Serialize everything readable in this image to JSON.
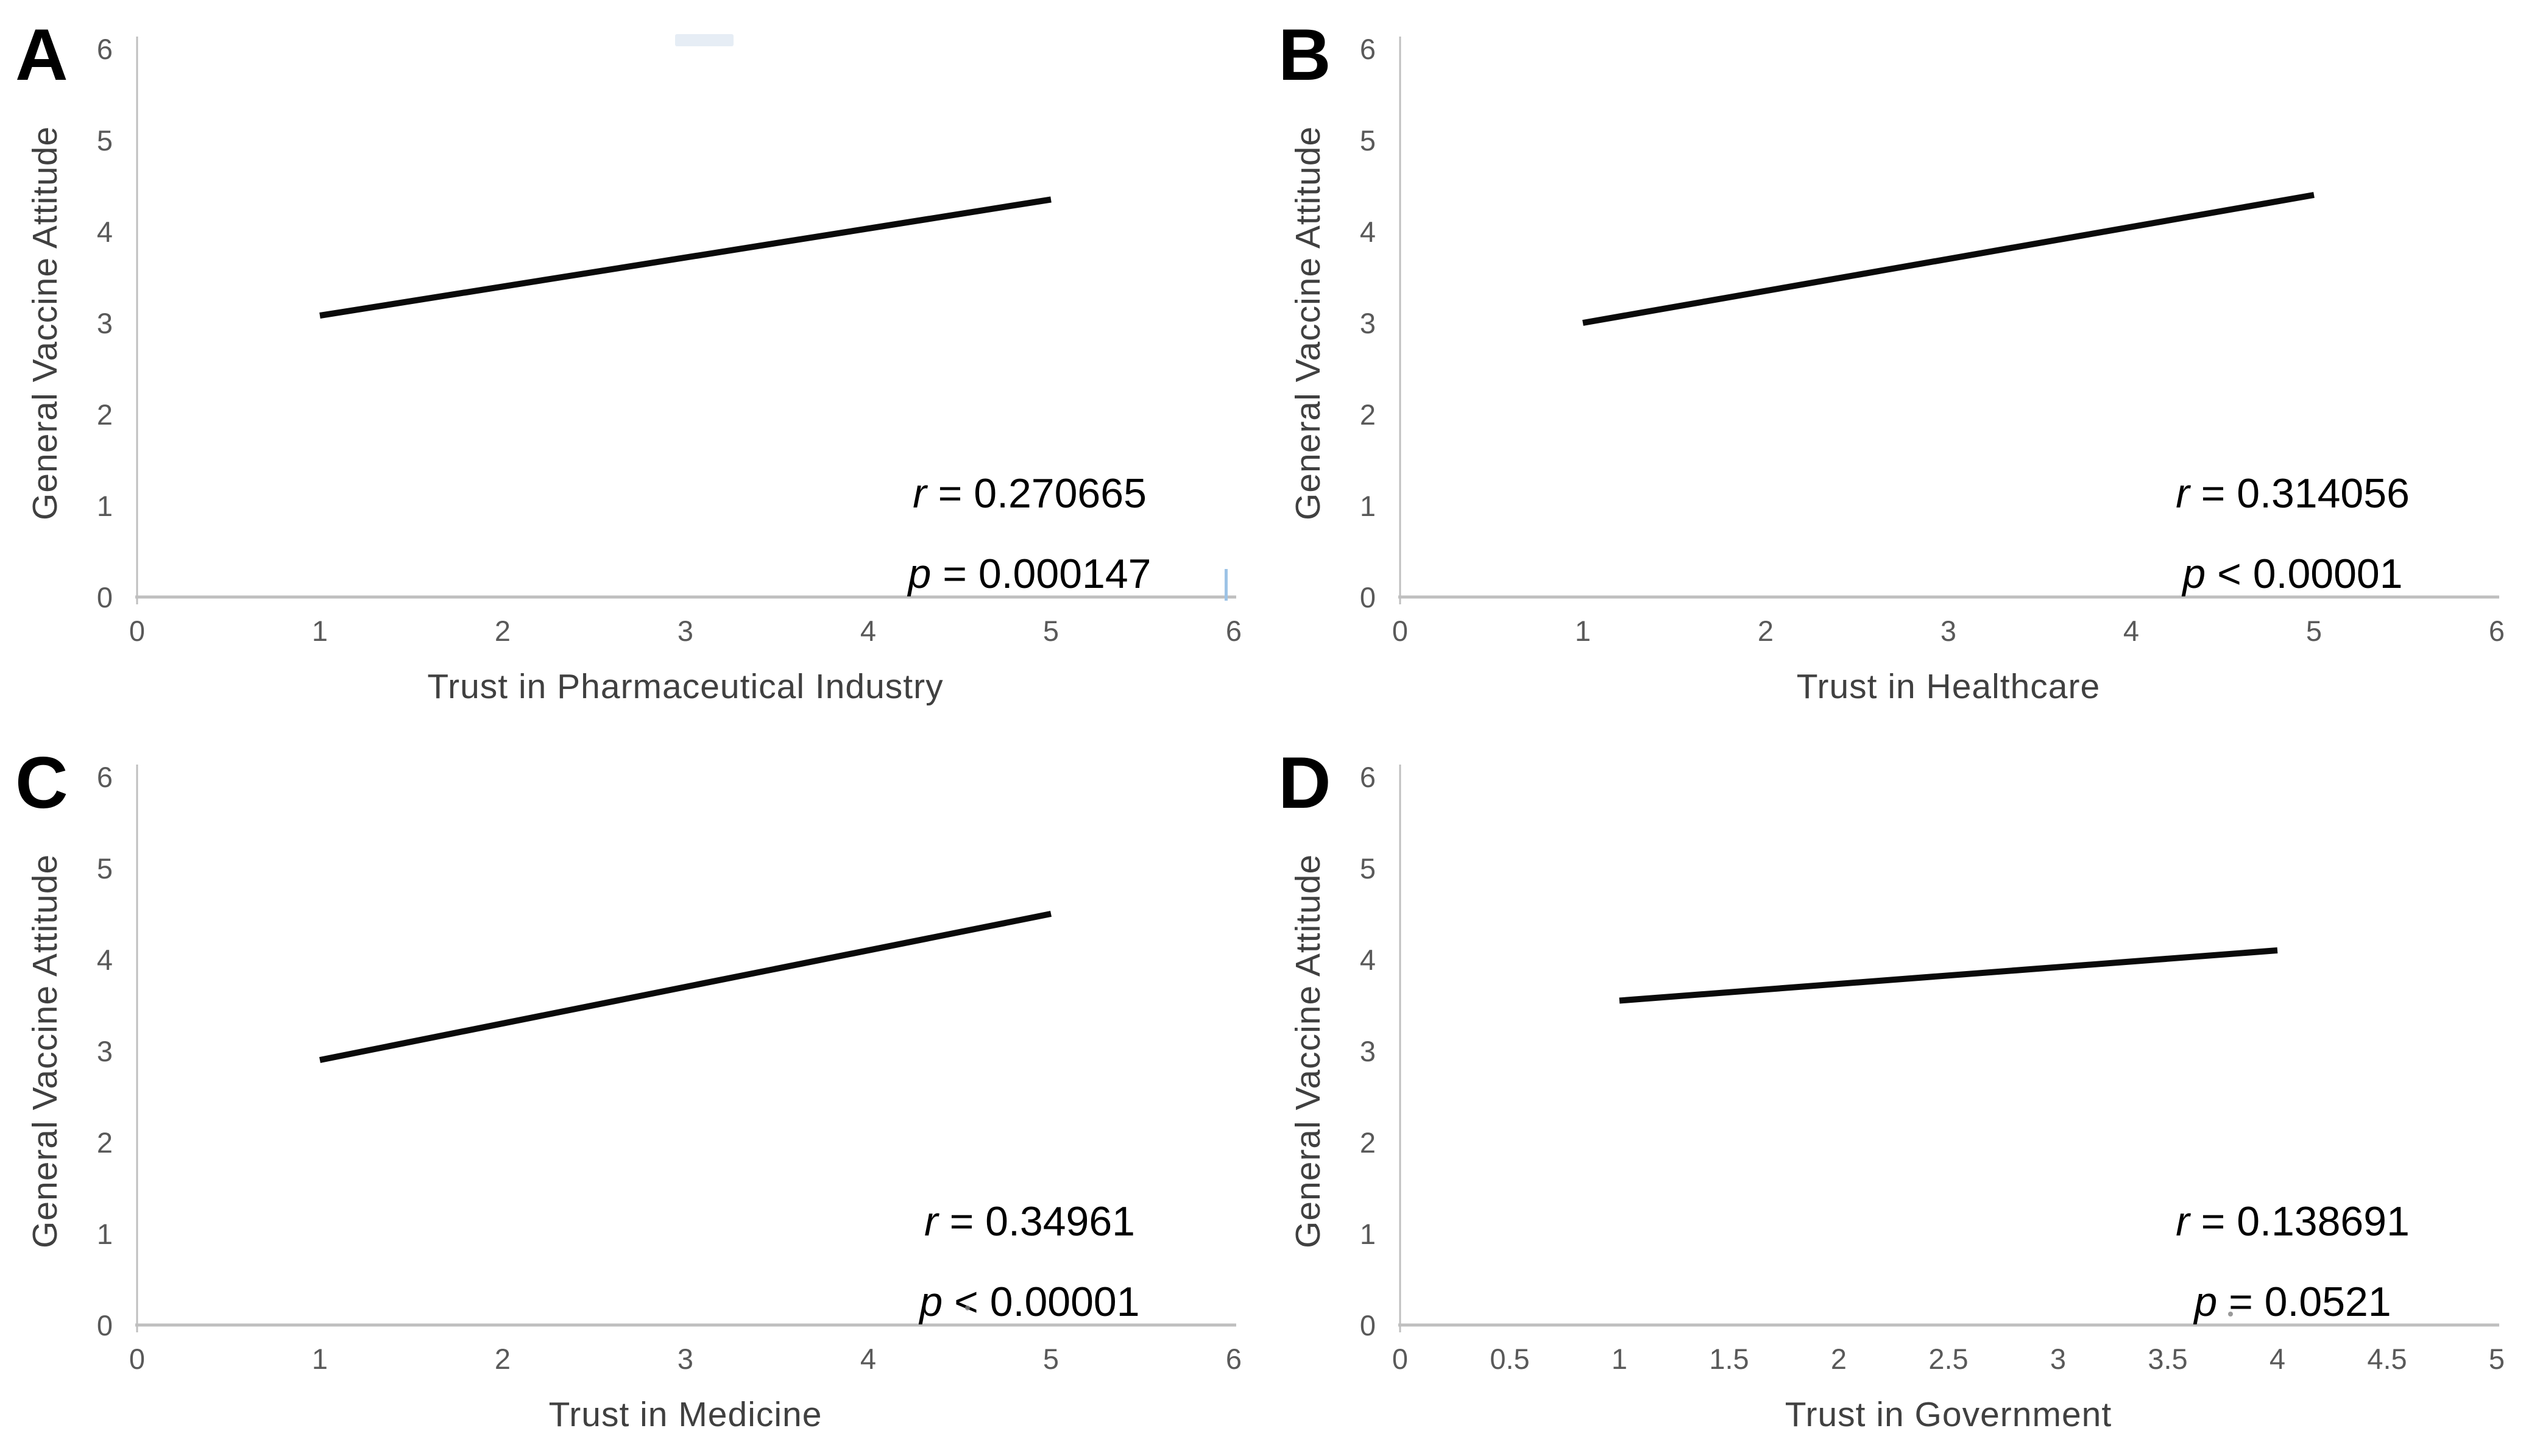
{
  "figure": {
    "background": "#ffffff",
    "axis_color": "#bfbfbf",
    "tick_label_color": "#595959",
    "axis_title_color": "#404040",
    "trend_line_color": "#0a0a0a",
    "stats_text_color": "#000000",
    "selection_artifact_color": "#9dc3e6"
  },
  "chart_data": [
    {
      "panel": "A",
      "type": "line",
      "xlabel": "Trust in Pharmaceutical Industry",
      "ylabel": "General Vaccine Attitude",
      "xlim": [
        0,
        6
      ],
      "ylim": [
        0,
        6
      ],
      "x_ticks": [
        0,
        1,
        2,
        3,
        4,
        5,
        6
      ],
      "y_ticks": [
        0,
        1,
        2,
        3,
        4,
        5,
        6
      ],
      "grid": false,
      "legend": "none",
      "regression_line": {
        "x": [
          1,
          5
        ],
        "y": [
          3.08,
          4.35
        ]
      },
      "r_value": 0.270665,
      "p_value": 0.000147,
      "stats": [
        {
          "sym": "r",
          "rest": " = 0.270665"
        },
        {
          "sym": "p",
          "rest": " = 0.000147"
        }
      ]
    },
    {
      "panel": "B",
      "type": "line",
      "xlabel": "Trust in Healthcare",
      "ylabel": "General Vaccine Attitude",
      "xlim": [
        0,
        6
      ],
      "ylim": [
        0,
        6
      ],
      "x_ticks": [
        0,
        1,
        2,
        3,
        4,
        5,
        6
      ],
      "y_ticks": [
        0,
        1,
        2,
        3,
        4,
        5,
        6
      ],
      "grid": false,
      "legend": "none",
      "regression_line": {
        "x": [
          1,
          5
        ],
        "y": [
          3.0,
          4.4
        ]
      },
      "r_value": 0.314056,
      "p_value": "< 0.00001",
      "stats": [
        {
          "sym": "r",
          "rest": " = 0.314056"
        },
        {
          "sym": "p",
          "rest": " < 0.00001"
        }
      ]
    },
    {
      "panel": "C",
      "type": "line",
      "xlabel": "Trust in Medicine",
      "ylabel": "General Vaccine Attitude",
      "xlim": [
        0,
        6
      ],
      "ylim": [
        0,
        6
      ],
      "x_ticks": [
        0,
        1,
        2,
        3,
        4,
        5,
        6
      ],
      "y_ticks": [
        0,
        1,
        2,
        3,
        4,
        5,
        6
      ],
      "grid": false,
      "legend": "none",
      "regression_line": {
        "x": [
          1,
          5
        ],
        "y": [
          2.9,
          4.5
        ]
      },
      "r_value": 0.34961,
      "p_value": "< 0.00001",
      "stats": [
        {
          "sym": "r",
          "rest": " = 0.34961"
        },
        {
          "sym": "p",
          "rest": " < 0.00001"
        }
      ]
    },
    {
      "panel": "D",
      "type": "line",
      "xlabel": "Trust in Government",
      "ylabel": "General Vaccine Attitude",
      "xlim": [
        0,
        5
      ],
      "ylim": [
        0,
        6
      ],
      "x_ticks": [
        0,
        0.5,
        1,
        1.5,
        2,
        2.5,
        3,
        3.5,
        4,
        4.5,
        5
      ],
      "y_ticks": [
        0,
        1,
        2,
        3,
        4,
        5,
        6
      ],
      "grid": false,
      "legend": "none",
      "regression_line": {
        "x": [
          1,
          4
        ],
        "y": [
          3.55,
          4.1
        ]
      },
      "r_value": 0.138691,
      "p_value": 0.0521,
      "stats": [
        {
          "sym": "r",
          "rest": " = 0.138691"
        },
        {
          "sym": "p",
          "rest": " = 0.0521"
        }
      ]
    }
  ]
}
